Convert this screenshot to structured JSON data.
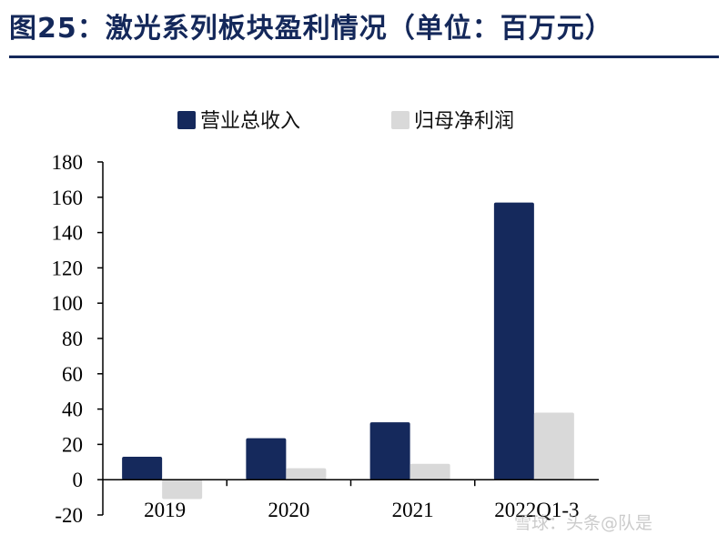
{
  "title": "图25：激光系列板块盈利情况（单位：百万元）",
  "watermark": "雪球：头条@队是",
  "colors": {
    "series1": "#15295c",
    "series2": "#d9d9d9",
    "title": "#14285a"
  },
  "chart_data": {
    "type": "bar",
    "categories": [
      "2019",
      "2020",
      "2021",
      "2022Q1-3"
    ],
    "series": [
      {
        "name": "营业总收入",
        "values": [
          13,
          23.5,
          32.5,
          157
        ]
      },
      {
        "name": "归母净利润",
        "values": [
          -11,
          6.5,
          9,
          38
        ]
      }
    ],
    "ylim": [
      -20,
      180
    ],
    "yticks": [
      "-20",
      "0",
      "20",
      "40",
      "60",
      "80",
      "100",
      "120",
      "140",
      "160",
      "180"
    ],
    "legend": "top",
    "grid": false
  }
}
